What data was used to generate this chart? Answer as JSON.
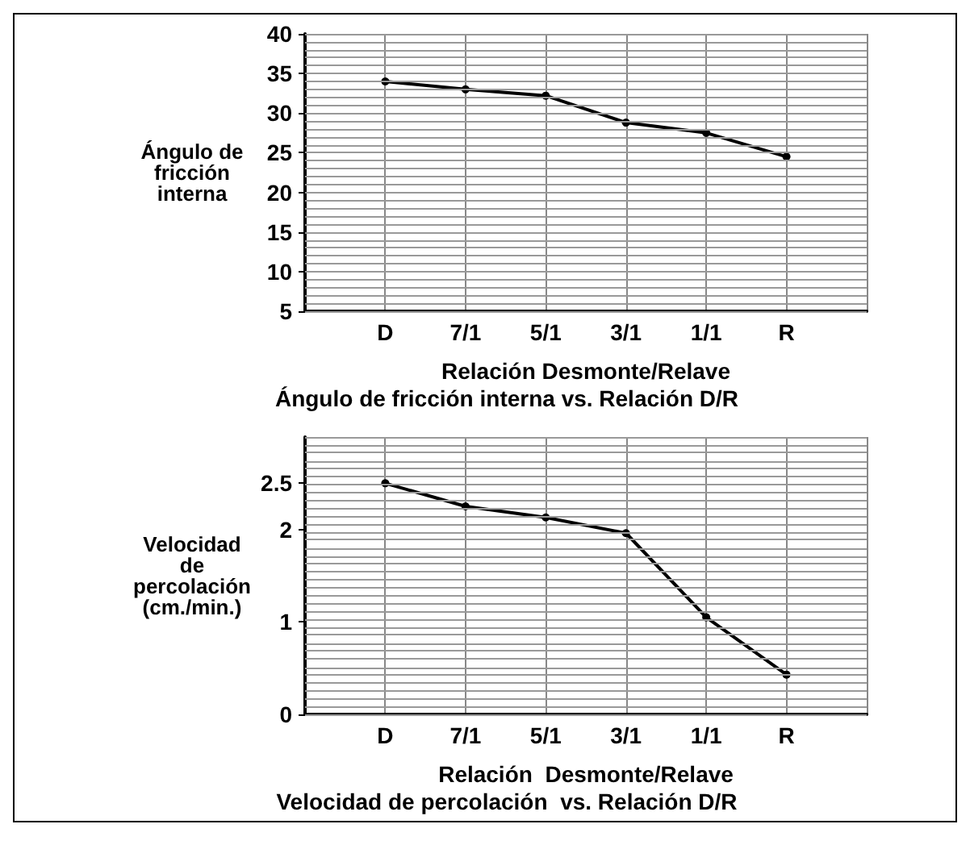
{
  "chart_data": [
    {
      "type": "line",
      "title": "Ángulo de fricción interna vs. Relación D/R",
      "xlabel": "Relación Desmonte/Relave",
      "ylabel": "Ángulo de\nfricción\ninterna",
      "categories": [
        null,
        "D",
        "7/1",
        "5/1",
        "3/1",
        "1/1",
        "R",
        null
      ],
      "series": [
        {
          "color": "#000000",
          "values": [
            null,
            34,
            33,
            32.2,
            28.8,
            27.5,
            24.5,
            null
          ]
        }
      ],
      "ylim": [
        5,
        40
      ],
      "yticks": [
        5,
        10,
        15,
        20,
        25,
        30,
        35,
        40
      ],
      "grid": true,
      "marker": "circle",
      "line_style": "solid"
    },
    {
      "type": "line",
      "title": "Velocidad de percolación  vs. Relación D/R",
      "xlabel": "Relación  Desmonte/Relave",
      "ylabel": "Velocidad\nde\npercolación\n(cm./min.)",
      "categories": [
        null,
        "D",
        "7/1",
        "5/1",
        "3/1",
        "1/1",
        "R",
        null
      ],
      "series": [
        {
          "color": "#000000",
          "values": [
            null,
            2.5,
            2.25,
            2.13,
            1.96,
            1.05,
            0.43,
            null
          ]
        }
      ],
      "ylim": [
        0,
        3
      ],
      "yticks": [
        0,
        1,
        2,
        2.5
      ],
      "grid": true,
      "marker": "circle",
      "line_style": "solid"
    }
  ]
}
